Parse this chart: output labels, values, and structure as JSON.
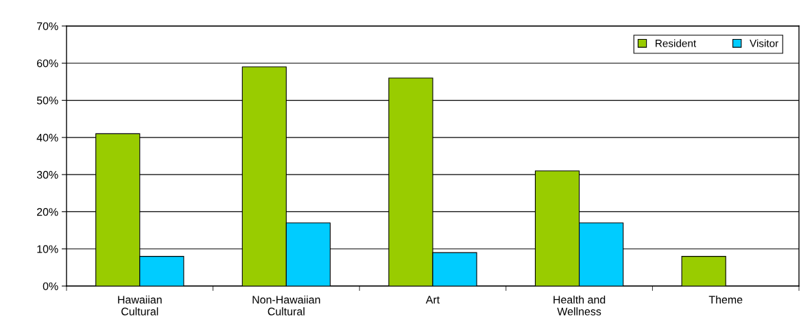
{
  "chart_data": {
    "type": "bar",
    "categories": [
      "Hawaiian\nCultural",
      "Non-Hawaiian\nCultural",
      "Art",
      "Health and\nWellness",
      "Theme"
    ],
    "series": [
      {
        "name": "Resident",
        "color": "#99cc00",
        "values": [
          41,
          59,
          56,
          31,
          8
        ]
      },
      {
        "name": "Visitor",
        "color": "#00ccff",
        "values": [
          8,
          17,
          9,
          17,
          null
        ]
      }
    ],
    "ylim": [
      0,
      70
    ],
    "yticks": [
      {
        "value": 0,
        "label": "0%"
      },
      {
        "value": 10,
        "label": "10%"
      },
      {
        "value": 20,
        "label": "20%"
      },
      {
        "value": 30,
        "label": "30%"
      },
      {
        "value": 40,
        "label": "40%"
      },
      {
        "value": 50,
        "label": "50%"
      },
      {
        "value": 60,
        "label": "60%"
      },
      {
        "value": 70,
        "label": "70%"
      }
    ],
    "grid": "y",
    "legend": "top right"
  }
}
